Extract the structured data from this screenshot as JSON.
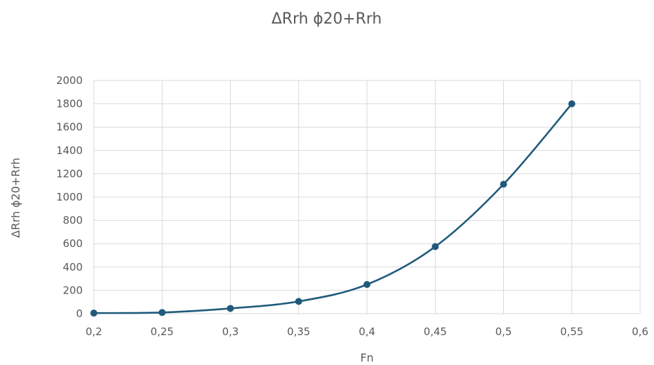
{
  "chart_data": {
    "type": "line",
    "title": "ΔRrh ϕ20+Rrh",
    "xlabel": "Fn",
    "ylabel": "ΔRrh ϕ20+Rrh",
    "xlim": [
      0.2,
      0.6
    ],
    "ylim": [
      0,
      2000
    ],
    "x_ticks": [
      "0,2",
      "0,25",
      "0,3",
      "0,35",
      "0,4",
      "0,45",
      "0,5",
      "0,55",
      "0,6"
    ],
    "y_ticks": [
      "0",
      "200",
      "400",
      "600",
      "800",
      "1000",
      "1200",
      "1400",
      "1600",
      "1800",
      "2000"
    ],
    "grid": true,
    "smooth": true,
    "line_color": "#1f5a7a",
    "series": [
      {
        "x": [
          0.2,
          0.25,
          0.3,
          0.35,
          0.4,
          0.45,
          0.5,
          0.55
        ],
        "y": [
          5,
          10,
          45,
          105,
          250,
          575,
          1110,
          1800
        ]
      }
    ]
  }
}
